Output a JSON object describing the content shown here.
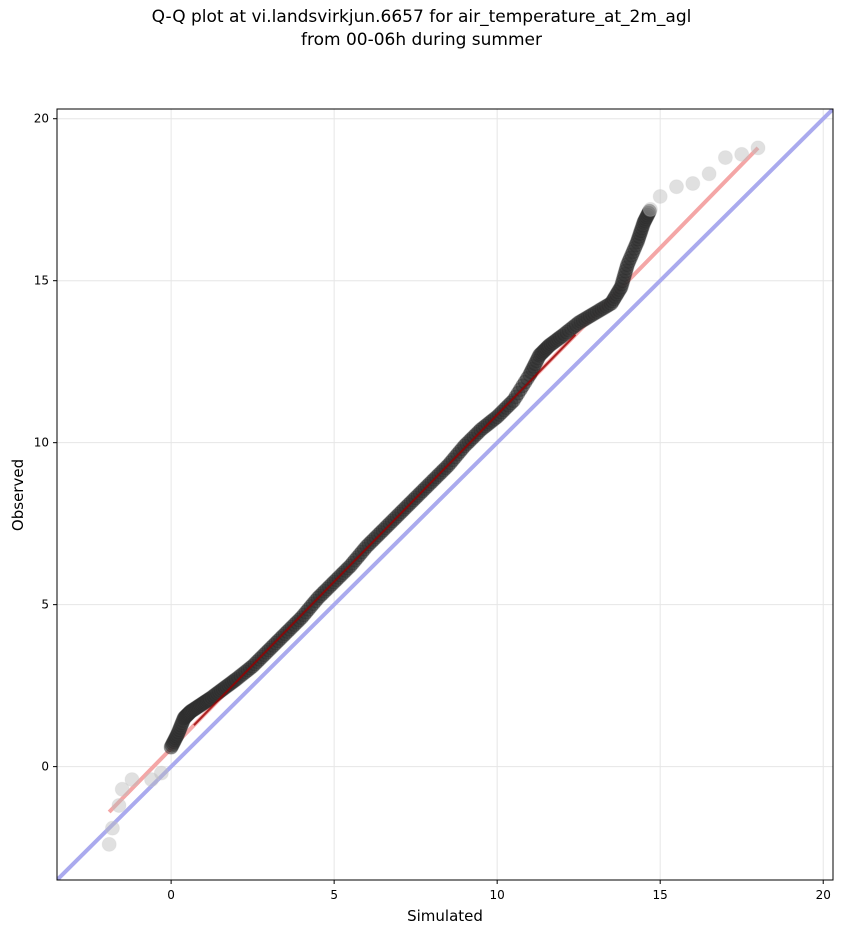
{
  "title_lines": [
    "Q-Q plot at vi.landsvirkjun.6657 for air_temperature_at_2m_agl",
    "from 00-06h during summer"
  ],
  "chart_data": {
    "type": "scatter",
    "title": "Q-Q plot at vi.landsvirkjun.6657 for air_temperature_at_2m_agl\nfrom 00-06h during summer",
    "xlabel": "Simulated",
    "ylabel": "Observed",
    "xlim": [
      -3.5,
      20.3
    ],
    "ylim": [
      -3.5,
      20.3
    ],
    "xticks": [
      0,
      5,
      10,
      15,
      20
    ],
    "yticks": [
      0,
      5,
      10,
      15,
      20
    ],
    "grid": true,
    "legend": "none",
    "colors": {
      "points": "#333333",
      "tail_points": "#bbbbbb",
      "fit_line": "#f4a6a6",
      "core_line": "#990000",
      "identity_line": "#aaaaee"
    },
    "quantiles": {
      "simulated": [
        -1.9,
        -1.8,
        -1.6,
        -1.5,
        -1.2,
        -0.6,
        -0.3,
        0.0,
        0.2,
        0.4,
        0.6,
        0.9,
        1.2,
        1.6,
        2.0,
        2.5,
        3.0,
        3.5,
        4.0,
        4.5,
        5.0,
        5.5,
        6.0,
        6.5,
        7.0,
        7.5,
        8.0,
        8.5,
        9.0,
        9.5,
        10.0,
        10.5,
        11.0,
        11.3,
        11.6,
        12.0,
        12.5,
        13.0,
        13.5,
        13.8,
        14.0,
        14.3,
        14.5,
        14.7,
        15.0,
        15.5,
        16.0,
        16.5,
        17.0,
        17.5,
        18.0
      ],
      "observed": [
        -2.4,
        -1.9,
        -1.2,
        -0.7,
        -0.4,
        -0.4,
        -0.2,
        0.6,
        1.0,
        1.5,
        1.7,
        1.9,
        2.1,
        2.4,
        2.7,
        3.1,
        3.6,
        4.1,
        4.6,
        5.2,
        5.7,
        6.2,
        6.8,
        7.3,
        7.8,
        8.3,
        8.8,
        9.3,
        9.9,
        10.4,
        10.8,
        11.3,
        12.1,
        12.7,
        13.0,
        13.3,
        13.7,
        14.0,
        14.3,
        14.8,
        15.5,
        16.2,
        16.8,
        17.2,
        17.6,
        17.9,
        18.0,
        18.3,
        18.8,
        18.9,
        19.1
      ]
    },
    "fit_line": {
      "x": [
        -1.9,
        18.0
      ],
      "y": [
        -1.4,
        19.1
      ]
    },
    "identity_line": {
      "x": [
        -3.5,
        20.3
      ],
      "y": [
        -3.5,
        20.3
      ]
    }
  }
}
